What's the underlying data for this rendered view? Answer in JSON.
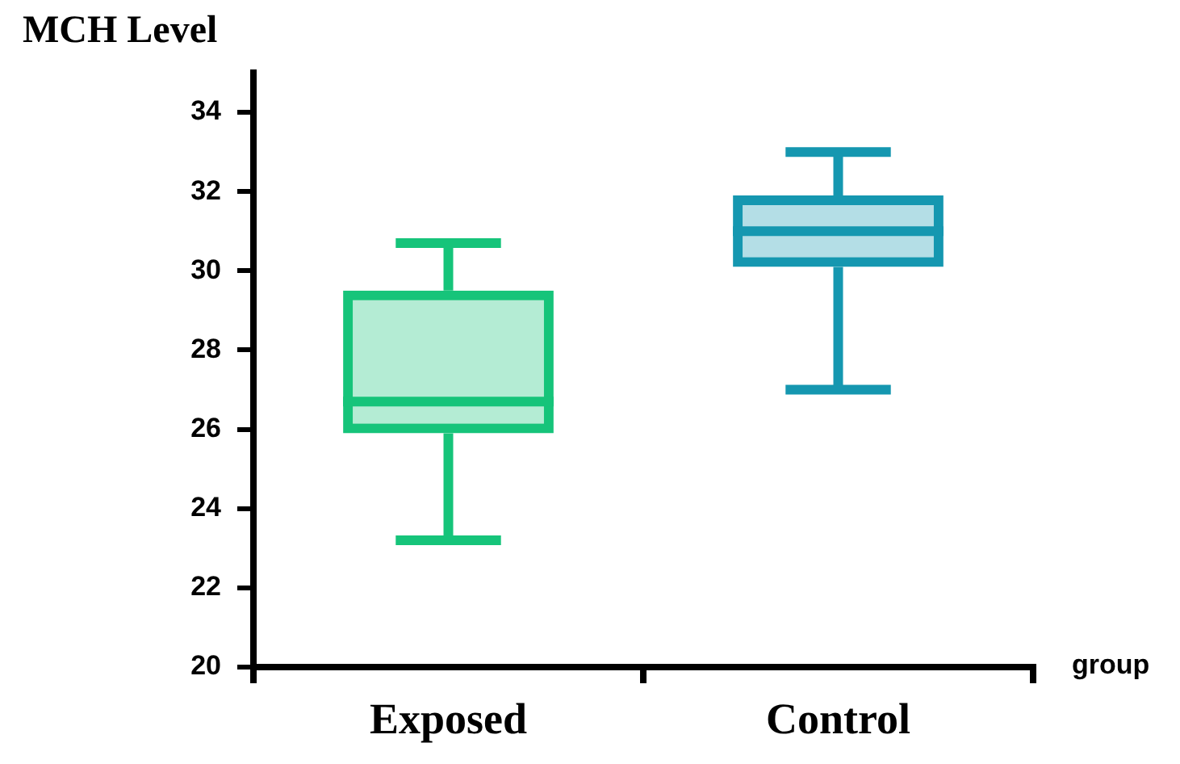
{
  "chart_data": {
    "type": "box",
    "ylabel": "MCH Level",
    "xlabel": "group",
    "categories": [
      "Exposed",
      "Control"
    ],
    "boxes": [
      {
        "low": 23.2,
        "q1": 25.9,
        "median": 26.7,
        "q3": 29.5,
        "high": 30.7
      },
      {
        "low": 27.0,
        "q1": 30.1,
        "median": 31.0,
        "q3": 31.9,
        "high": 33.0
      }
    ],
    "colors": [
      "#16c47a",
      "#1597b0"
    ],
    "ylim": [
      20,
      35
    ],
    "yticks": [
      20,
      22,
      24,
      26,
      28,
      30,
      32,
      34
    ],
    "grid": false,
    "legend": false
  }
}
